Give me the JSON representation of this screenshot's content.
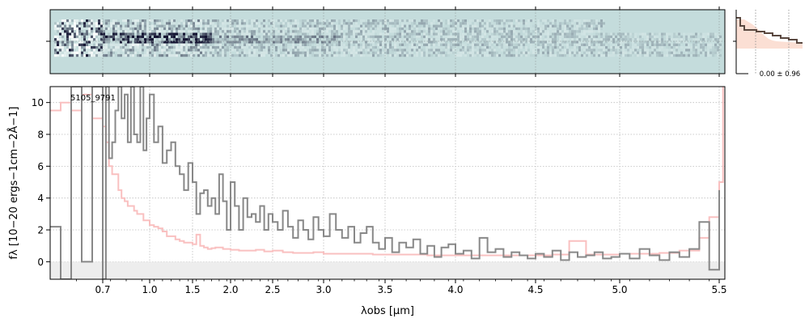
{
  "chart_data": [
    {
      "type": "heatmap",
      "panel": "2d-spectrum",
      "x_axis_scale": "custom-nonlinear-wavelength",
      "xlim": [
        0.6,
        5.53
      ],
      "ytick_count": 1,
      "grid": true,
      "colors": {
        "background": "#c4dcdc",
        "dark": "#1a1a33",
        "light": "#ffffff"
      }
    },
    {
      "type": "line",
      "panel": "profile",
      "annotation": "0.00 ± 0.96",
      "colors": {
        "data": "#5a4840",
        "model": "#f9c9b8",
        "guide": "#888888"
      }
    },
    {
      "type": "line",
      "panel": "1d-spectrum",
      "title": "5105_9791",
      "xlabel": "λobs [μm]",
      "ylabel": "fλ [10−20 ergs−1cm−2Å−1]",
      "xticks": [
        "0.7",
        "1.0",
        "1.5",
        "2.0",
        "2.5",
        "3.0",
        "3.5",
        "4.0",
        "4.5",
        "5.0",
        "5.5"
      ],
      "xtick_values": [
        0.7,
        1.0,
        1.5,
        2.0,
        2.5,
        3.0,
        3.5,
        4.0,
        4.5,
        5.0,
        5.5
      ],
      "yticks": [
        "0",
        "2",
        "4",
        "6",
        "8",
        "10"
      ],
      "ylim": [
        -1.1,
        11
      ],
      "xlim": [
        0.6,
        5.53
      ],
      "grid": true,
      "colors": {
        "flux": "#888888",
        "error": "#f9c0c0",
        "zero": "#ededed"
      },
      "series": [
        {
          "role": "flux",
          "x": [
            0.6,
            0.62,
            0.64,
            0.66,
            0.68,
            0.7,
            0.72,
            0.74,
            0.76,
            0.78,
            0.8,
            0.82,
            0.84,
            0.86,
            0.88,
            0.9,
            0.92,
            0.94,
            0.96,
            0.98,
            1.0,
            1.05,
            1.1,
            1.15,
            1.2,
            1.25,
            1.3,
            1.35,
            1.4,
            1.45,
            1.5,
            1.55,
            1.6,
            1.65,
            1.7,
            1.75,
            1.8,
            1.85,
            1.9,
            1.95,
            2.0,
            2.05,
            2.1,
            2.15,
            2.2,
            2.25,
            2.3,
            2.35,
            2.4,
            2.45,
            2.5,
            2.55,
            2.6,
            2.65,
            2.7,
            2.75,
            2.8,
            2.85,
            2.9,
            2.95,
            3.0,
            3.05,
            3.1,
            3.15,
            3.2,
            3.25,
            3.3,
            3.35,
            3.4,
            3.45,
            3.5,
            3.55,
            3.6,
            3.65,
            3.7,
            3.75,
            3.8,
            3.85,
            3.9,
            3.95,
            4.0,
            4.05,
            4.1,
            4.15,
            4.2,
            4.25,
            4.3,
            4.35,
            4.4,
            4.45,
            4.5,
            4.55,
            4.6,
            4.65,
            4.7,
            4.75,
            4.8,
            4.85,
            4.9,
            4.95,
            5.0,
            5.05,
            5.1,
            5.15,
            5.2,
            5.25,
            5.3,
            5.35,
            5.4,
            5.45,
            5.5
          ],
          "y": [
            2.2,
            -1.1,
            11,
            0,
            11,
            -1.1,
            11,
            6.5,
            7.5,
            9.5,
            11,
            9,
            10.5,
            7.5,
            11,
            8,
            7.5,
            11,
            7,
            9,
            10.5,
            7.5,
            8.5,
            6.2,
            7,
            7.5,
            6,
            5.5,
            4.5,
            6.2,
            5,
            3,
            4.3,
            4.5,
            3.5,
            4,
            3,
            5.5,
            3.8,
            2,
            5,
            3.5,
            2,
            4,
            2.8,
            3,
            2.5,
            3.5,
            2,
            3,
            2.5,
            2,
            3.2,
            2.2,
            1.5,
            2.6,
            2,
            1.4,
            2.8,
            2,
            1.6,
            3,
            2,
            1.5,
            2.2,
            1.2,
            1.8,
            2.2,
            1.2,
            0.8,
            1.5,
            0.6,
            1.2,
            0.9,
            1.4,
            0.5,
            1,
            0.3,
            0.9,
            1.1,
            0.5,
            0.7,
            0.2,
            1.5,
            0.6,
            0.8,
            0.3,
            0.6,
            0.4,
            0.2,
            0.5,
            0.3,
            0.7,
            0.1,
            0.6,
            0.3,
            0.4,
            0.6,
            0.2,
            0.3,
            0.5,
            0.2,
            0.8,
            0.4,
            0.1,
            0.6,
            0.3,
            0.8,
            2.5,
            -0.5,
            4.5
          ]
        },
        {
          "role": "error",
          "x": [
            0.6,
            0.62,
            0.64,
            0.66,
            0.68,
            0.7,
            0.72,
            0.74,
            0.76,
            0.78,
            0.8,
            0.82,
            0.84,
            0.86,
            0.88,
            0.9,
            0.92,
            0.94,
            0.96,
            0.98,
            1.0,
            1.05,
            1.1,
            1.15,
            1.2,
            1.25,
            1.3,
            1.35,
            1.4,
            1.45,
            1.5,
            1.55,
            1.6,
            1.65,
            1.7,
            1.75,
            1.8,
            1.9,
            2.0,
            2.1,
            2.2,
            2.3,
            2.4,
            2.5,
            2.6,
            2.7,
            2.8,
            2.9,
            3.0,
            3.2,
            3.4,
            3.6,
            3.8,
            4.0,
            4.2,
            4.4,
            4.6,
            4.7,
            4.8,
            5.0,
            5.2,
            5.3,
            5.4,
            5.45,
            5.5,
            5.52
          ],
          "y": [
            9.5,
            10,
            9.5,
            10.5,
            9,
            8.5,
            7.5,
            6,
            5.5,
            5.5,
            4.5,
            4,
            3.8,
            3.5,
            3.5,
            3.2,
            3,
            3,
            2.6,
            2.6,
            2.3,
            2.2,
            2.1,
            1.9,
            1.6,
            1.6,
            1.4,
            1.3,
            1.2,
            1.2,
            1.1,
            1.7,
            1.0,
            0.9,
            0.8,
            0.85,
            0.9,
            0.8,
            0.75,
            0.7,
            0.7,
            0.75,
            0.65,
            0.7,
            0.6,
            0.55,
            0.55,
            0.6,
            0.5,
            0.5,
            0.45,
            0.45,
            0.4,
            0.4,
            0.4,
            0.4,
            0.45,
            1.3,
            0.45,
            0.5,
            0.55,
            0.7,
            1.5,
            2.8,
            5,
            11
          ]
        }
      ]
    }
  ]
}
